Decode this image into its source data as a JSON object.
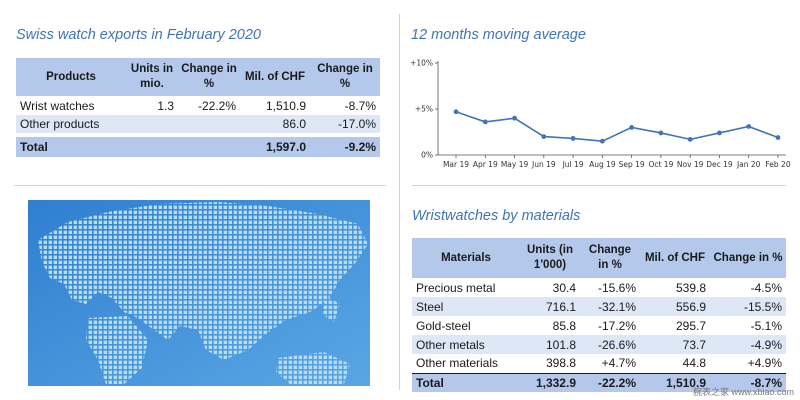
{
  "exports": {
    "title": "Swiss watch exports in February 2020",
    "headers": [
      "Products",
      "Units in mio.",
      "Change in %",
      "Mil. of CHF",
      "Change in %"
    ],
    "rows": [
      {
        "product": "Wrist watches",
        "units": "1.3",
        "change_units": "-22.2%",
        "chf": "1,510.9",
        "change_chf": "-8.7%"
      },
      {
        "product": "Other products",
        "units": "",
        "change_units": "",
        "chf": "86.0",
        "change_chf": "-17.0%"
      }
    ],
    "total": {
      "product": "Total",
      "units": "",
      "change_units": "",
      "chf": "1,597.0",
      "change_chf": "-9.2%"
    }
  },
  "moving_average": {
    "title": "12 months moving average"
  },
  "materials": {
    "title": "Wristwatches by materials",
    "headers": [
      "Materials",
      "Units (in 1'000)",
      "Change in %",
      "Mil. of CHF",
      "Change in %"
    ],
    "rows": [
      {
        "material": "Precious metal",
        "units": "30.4",
        "change_units": "-15.6%",
        "chf": "539.8",
        "change_chf": "-4.5%"
      },
      {
        "material": "Steel",
        "units": "716.1",
        "change_units": "-32.1%",
        "chf": "556.9",
        "change_chf": "-15.5%"
      },
      {
        "material": "Gold-steel",
        "units": "85.8",
        "change_units": "-17.2%",
        "chf": "295.7",
        "change_chf": "-5.1%"
      },
      {
        "material": "Other metals",
        "units": "101.8",
        "change_units": "-26.6%",
        "chf": "73.7",
        "change_chf": "-4.9%"
      },
      {
        "material": "Other materials",
        "units": "398.8",
        "change_units": "+4.7%",
        "chf": "44.8",
        "change_chf": "+4.9%"
      }
    ],
    "total": {
      "material": "Total",
      "units": "1,332.9",
      "change_units": "-22.2%",
      "chf": "1,510.9",
      "change_chf": "-8.7%"
    }
  },
  "watermark": "腕表之家 www.xbiao.com",
  "map": {
    "icon": "world-map-dotted-icon",
    "background": "#3f8fd8",
    "dot_color": "#a9d3f2"
  },
  "chart_data": {
    "type": "line",
    "title": "12 months moving average",
    "xlabel": "",
    "ylabel": "",
    "x": [
      "Mar 19",
      "Apr 19",
      "May 19",
      "Jun 19",
      "Jul 19",
      "Aug 19",
      "Sep 19",
      "Oct 19",
      "Nov 19",
      "Dec 19",
      "Jan 20",
      "Feb 20"
    ],
    "series": [
      {
        "values": [
          4.7,
          3.6,
          4.0,
          2.0,
          1.8,
          1.5,
          3.0,
          2.4,
          1.7,
          2.4,
          3.1,
          1.9
        ],
        "color": "#3f74b8"
      }
    ],
    "yticks": [
      0,
      5,
      10
    ],
    "ytick_labels": [
      "0%",
      "+5%",
      "+10%"
    ],
    "ylim": [
      0,
      10
    ],
    "grid": false,
    "legend": "none"
  }
}
